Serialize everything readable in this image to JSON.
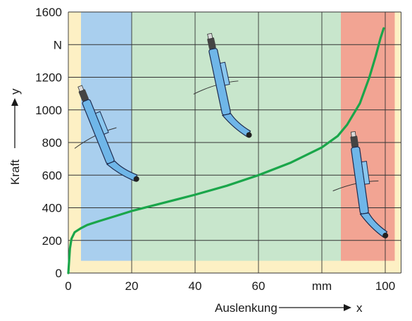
{
  "chart_data": {
    "type": "line",
    "xlabel": "Auslenkung",
    "xlabel_symbol": "x",
    "ylabel": "Kraft",
    "ylabel_symbol": "y",
    "x_unit": "mm",
    "y_unit": "N",
    "xlim": [
      0,
      105
    ],
    "ylim": [
      0,
      1600
    ],
    "x_ticks": [
      "0",
      "20",
      "40",
      "60",
      "mm",
      "100"
    ],
    "y_ticks": [
      "0",
      "200",
      "400",
      "600",
      "800",
      "1000",
      "1200",
      "N",
      "1600"
    ],
    "grid": true,
    "colors": {
      "curve": "#1aa64a",
      "zone_left": "#a9cfee",
      "zone_middle": "#c8e6cc",
      "zone_right": "#f2a493",
      "background": "#fdf0c4"
    },
    "zones": [
      {
        "name": "zone-left",
        "x_start": 4,
        "x_end": 20,
        "y_start": 75,
        "y_end": 1600
      },
      {
        "name": "zone-middle",
        "x_start": 20,
        "x_end": 86,
        "y_start": 75,
        "y_end": 1600
      },
      {
        "name": "zone-right",
        "x_start": 86,
        "x_end": 103,
        "y_start": 75,
        "y_end": 1600
      }
    ],
    "series": [
      {
        "x": [
          0,
          0.5,
          1,
          2,
          4,
          6,
          10,
          15,
          20,
          30,
          40,
          50,
          60,
          70,
          80,
          85,
          88,
          92,
          95,
          97,
          98.5,
          99.5
        ],
        "y": [
          0,
          150,
          210,
          250,
          275,
          295,
          320,
          350,
          380,
          430,
          480,
          535,
          600,
          675,
          770,
          840,
          910,
          1040,
          1200,
          1330,
          1440,
          1500
        ]
      }
    ],
    "illustrations": [
      "probe-icon",
      "probe-icon",
      "probe-icon"
    ]
  }
}
